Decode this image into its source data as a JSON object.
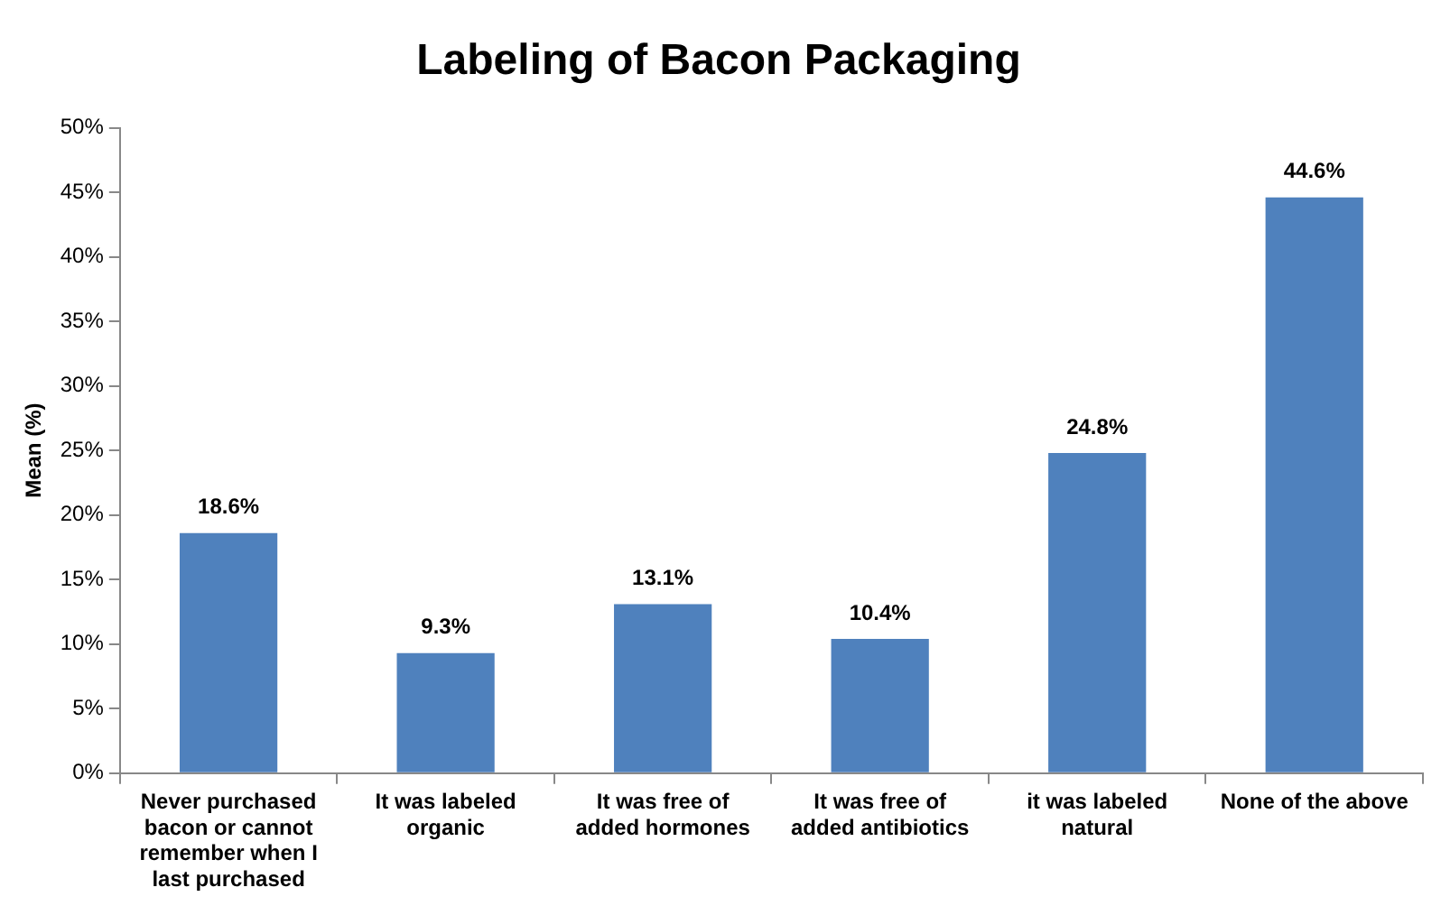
{
  "chart_data": {
    "type": "bar",
    "title": "Labeling of Bacon Packaging",
    "ylabel": "Mean (%)",
    "categories": [
      "Never purchased bacon or cannot remember when I last purchased",
      "It was labeled organic",
      "It was free of added hormones",
      "It was free of added antibiotics",
      "it was labeled natural",
      "None of the above"
    ],
    "values": [
      18.6,
      9.3,
      13.1,
      10.4,
      24.8,
      44.6
    ],
    "color": "#4f81bd",
    "value_labels": [
      "18.6%",
      "9.3%",
      "13.1%",
      "10.4%",
      "24.8%",
      "44.6%"
    ],
    "ylim": [
      0,
      50
    ],
    "yticks": [
      {
        "value": 0,
        "label": "0%"
      },
      {
        "value": 5,
        "label": "5%"
      },
      {
        "value": 10,
        "label": "10%"
      },
      {
        "value": 15,
        "label": "15%"
      },
      {
        "value": 20,
        "label": "20%"
      },
      {
        "value": 25,
        "label": "25%"
      },
      {
        "value": 30,
        "label": "30%"
      },
      {
        "value": 35,
        "label": "35%"
      },
      {
        "value": 40,
        "label": "40%"
      },
      {
        "value": 45,
        "label": "45%"
      },
      {
        "value": 50,
        "label": "50%"
      }
    ],
    "grid": false,
    "legend": false
  }
}
